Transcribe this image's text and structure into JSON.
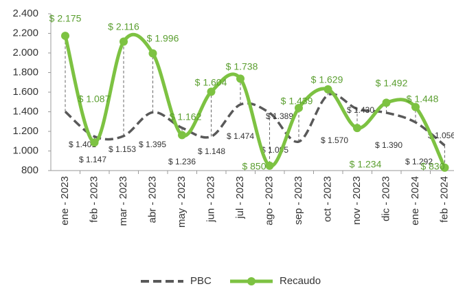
{
  "chart_data": {
    "type": "line",
    "categories": [
      "ene - 2023",
      "feb - 2023",
      "mar - 2023",
      "abr - 2023",
      "may - 2023",
      "jun - 2023",
      "jul - 2023",
      "ago - 2023",
      "sep - 2023",
      "oct - 2023",
      "nov - 2023",
      "dic - 2023",
      "ene - 2024",
      "feb - 2024"
    ],
    "series": [
      {
        "name": "PBC",
        "color": "#595959",
        "dashed": true,
        "values": [
          1401,
          1147,
          1153,
          1395,
          1236,
          1148,
          1474,
          1389,
          1095,
          1570,
          1430,
          1390,
          1292,
          1056
        ],
        "value_labels": [
          "$ 1.401",
          "$ 1.147",
          "$ 1.153",
          "$ 1.395",
          "$ 1.236",
          "$ 1.148",
          "$ 1.474",
          "$ 1.389",
          "$ 1.095",
          "$ 1.570",
          "$ 1.430",
          "$ 1.390",
          "$ 1.292",
          "$ 1.056"
        ]
      },
      {
        "name": "Recaudo",
        "color": "#7dc242",
        "markers": true,
        "values": [
          2175,
          1087,
          2116,
          1996,
          1162,
          1604,
          1738,
          850,
          1439,
          1629,
          1234,
          1492,
          1448,
          830
        ],
        "value_labels": [
          "$ 2.175",
          "$ 1.087",
          "$ 2.116",
          "$ 1.996",
          "$ 1.162",
          "$ 1.604",
          "$ 1.738",
          "$ 850",
          "$ 1.439",
          "$ 1.629",
          "$ 1.234",
          "$ 1.492",
          "$ 1.448",
          "$ 830"
        ]
      }
    ],
    "ylim": [
      800,
      2400
    ],
    "yticks": [
      800,
      {
        "value": 1000,
        "label": "1.000"
      },
      {
        "value": 1200,
        "label": "1.200"
      },
      {
        "value": 1400,
        "label": "1.400"
      },
      {
        "value": 1600,
        "label": "1.600"
      },
      {
        "value": 1800,
        "label": "1.800"
      },
      {
        "value": 2000,
        "label": "2.000"
      },
      {
        "value": 2200,
        "label": "2.200"
      },
      {
        "value": 2400,
        "label": "2.400"
      }
    ],
    "smooth": true,
    "drop_lines": true,
    "legend": "bottom"
  }
}
